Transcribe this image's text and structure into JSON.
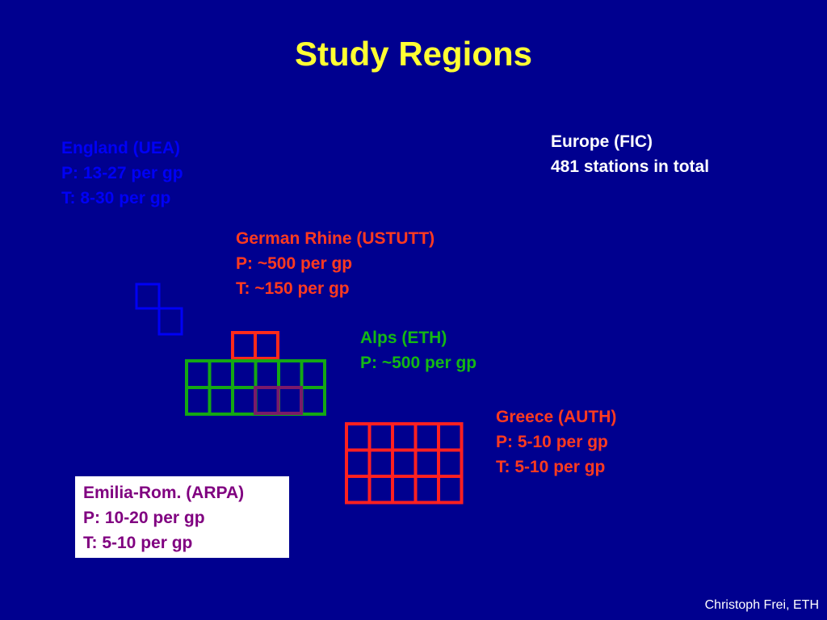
{
  "title": "Study Regions",
  "regions": {
    "europe": {
      "lines": [
        "Europe (FIC)",
        "481 stations in total"
      ],
      "color": "#ffffff"
    },
    "england": {
      "lines": [
        "England (UEA)",
        "P: 13-27 per gp",
        "T: 8-30 per gp"
      ],
      "color": "#0000f5"
    },
    "rhine": {
      "lines": [
        "German Rhine (USTUTT)",
        "P: ~500 per gp",
        "T: ~150 per gp"
      ],
      "color": "#ff3a1f"
    },
    "alps": {
      "lines": [
        "Alps (ETH)",
        "P: ~500 per gp"
      ],
      "color": "#14b814"
    },
    "greece": {
      "lines": [
        "Greece (AUTH)",
        "P: 5-10 per gp",
        "T: 5-10 per gp"
      ],
      "color": "#ff3a1f"
    },
    "emilia": {
      "lines": [
        "Emilia-Rom. (ARPA)",
        "P: 10-20 per gp",
        "T: 5-10 per gp"
      ],
      "color": "#800080"
    }
  },
  "grid_colors": {
    "england": "#0000f5",
    "rhine": "#ff2a1a",
    "alps": "#14a814",
    "emilia": "#7a1a6a",
    "greece": "#ff2020"
  },
  "credit": "Christoph Frei, ETH"
}
